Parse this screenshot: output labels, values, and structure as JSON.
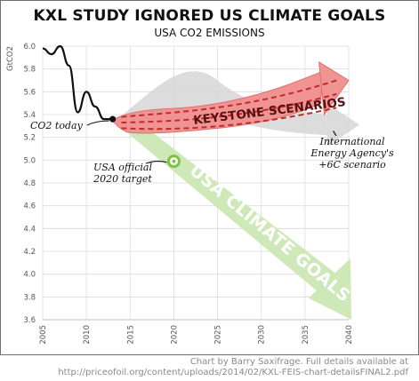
{
  "chart_data": {
    "type": "line",
    "title": "KXL STUDY IGNORED US CLIMATE GOALS",
    "subtitle": "USA CO2 EMISSIONS",
    "ylabel": "GtCO2",
    "xlim": [
      2005,
      2040
    ],
    "ylim": [
      3.6,
      6.0
    ],
    "x_ticks": [
      "2005",
      "2010",
      "2015",
      "2020",
      "2025",
      "2030",
      "2035",
      "2040"
    ],
    "y_ticks": [
      "3.6",
      "3.8",
      "4.0",
      "4.2",
      "4.4",
      "4.6",
      "4.8",
      "5.0",
      "5.2",
      "5.4",
      "5.6",
      "5.8",
      "6.0"
    ],
    "grid": true,
    "series": [
      {
        "x": [
          2005,
          2006,
          2007,
          2008,
          2009,
          2010,
          2011,
          2012,
          2013
        ],
        "y": [
          5.98,
          5.93,
          6.0,
          5.83,
          5.42,
          5.6,
          5.47,
          5.36,
          5.36
        ],
        "color": "#111111"
      },
      {
        "x": [
          2013,
          2015,
          2020,
          2025,
          2030,
          2035,
          2039
        ],
        "y": [
          5.34,
          5.36,
          5.4,
          5.44,
          5.52,
          5.62,
          5.72
        ],
        "color": "#e05a5a"
      },
      {
        "x": [
          2015,
          2040
        ],
        "y": [
          5.2,
          3.6
        ],
        "color": "#c8e6b0"
      }
    ],
    "annotations": {
      "co2_today": "CO2 today",
      "target_line1": "USA official",
      "target_line2": "2020 target",
      "keystone": "KEYSTONE SCENARIOS",
      "six_c": "+6C",
      "iea_line1": "International",
      "iea_line2": "Energy Agency's",
      "iea_line3": "+6C scenario",
      "goals": "USA CLIMATE GOALS"
    },
    "colors": {
      "keystone_fill": "#ef9090",
      "keystone_dash": "#c22b2b",
      "goals_fill": "#cfe8b8",
      "iea_fill": "#d8d8d8",
      "target_ring": "#7dc242",
      "grid": "#dcdcdc"
    }
  },
  "credit": {
    "line1": "Chart by Barry Saxifrage. Full details available at",
    "line2": "http://priceofoil.org/content/uploads/2014/02/KXL-FEIS-chart-detailsFINAL2.pdf"
  }
}
